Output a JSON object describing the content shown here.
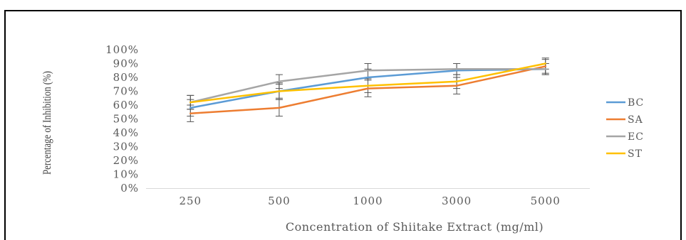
{
  "chart_data": {
    "type": "line",
    "xlabel": "Concentration of Shiitake Extract (mg/ml)",
    "ylabel": "Percentage of Inhibition (%)",
    "categories": [
      "250",
      "500",
      "1000",
      "3000",
      "5000"
    ],
    "y_ticks": [
      "0%",
      "10%",
      "20%",
      "30%",
      "40%",
      "50%",
      "60%",
      "70%",
      "80%",
      "90%",
      "100%"
    ],
    "ylim": [
      0,
      100
    ],
    "grid": false,
    "legend_position": "right",
    "error_bars": true,
    "series": [
      {
        "name": "BC",
        "color": "#5b9bd5",
        "values": [
          58,
          70,
          80,
          85,
          86
        ],
        "errors": [
          6,
          6,
          6,
          5,
          4
        ]
      },
      {
        "name": "SA",
        "color": "#ed7d31",
        "values": [
          54,
          58,
          72,
          74,
          88
        ],
        "errors": [
          6,
          6,
          6,
          6,
          5
        ]
      },
      {
        "name": "EC",
        "color": "#a5a5a5",
        "values": [
          62,
          77,
          85,
          86,
          86
        ],
        "errors": [
          5,
          5,
          5,
          4,
          4
        ]
      },
      {
        "name": "ST",
        "color": "#ffc000",
        "values": [
          62,
          70,
          74,
          77,
          90
        ],
        "errors": [
          5,
          5,
          5,
          5,
          4
        ]
      }
    ]
  }
}
